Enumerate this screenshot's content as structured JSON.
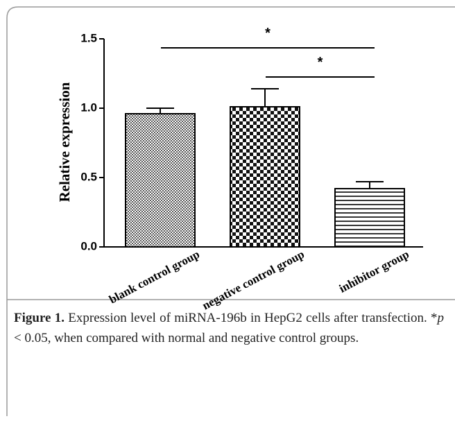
{
  "chart_data": {
    "type": "bar",
    "ylabel": "Relative expression",
    "categories": [
      "blank control group",
      "negative control group",
      "inhibitor group"
    ],
    "values": [
      0.96,
      1.01,
      0.42
    ],
    "errors": [
      0.04,
      0.13,
      0.05
    ],
    "ylim": [
      0,
      1.5
    ],
    "yticks": [
      {
        "value": 0,
        "label": "0.0"
      },
      {
        "value": 0.5,
        "label": "0.5"
      },
      {
        "value": 1,
        "label": "1.0"
      },
      {
        "value": 1.5,
        "label": "1.5"
      }
    ],
    "color": "#000000",
    "annotations": [
      {
        "text": "*",
        "from": 0,
        "to": 2
      },
      {
        "text": "*",
        "from": 1,
        "to": 2
      }
    ]
  },
  "caption": {
    "label": "Figure 1.",
    "text_before": " Expression level of miRNA-196b in HepG2 cells after transfection. *",
    "italic": "p",
    "text_after": " < 0.05, when compared with normal and negative control groups."
  }
}
